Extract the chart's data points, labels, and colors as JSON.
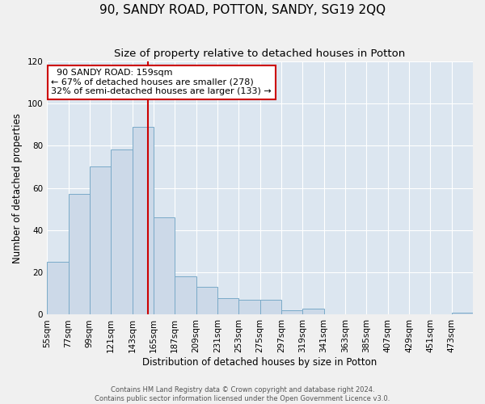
{
  "title": "90, SANDY ROAD, POTTON, SANDY, SG19 2QQ",
  "subtitle": "Size of property relative to detached houses in Potton",
  "xlabel": "Distribution of detached houses by size in Potton",
  "ylabel": "Number of detached properties",
  "property_label": "90 SANDY ROAD: 159sqm",
  "annotation_line1": "← 67% of detached houses are smaller (278)",
  "annotation_line2": "32% of semi-detached houses are larger (133) →",
  "footer_line1": "Contains HM Land Registry data © Crown copyright and database right 2024.",
  "footer_line2": "Contains public sector information licensed under the Open Government Licence v3.0.",
  "bar_edges": [
    55,
    77,
    99,
    121,
    143,
    165,
    187,
    209,
    231,
    253,
    275,
    297,
    319,
    341,
    363,
    385,
    407,
    429,
    451,
    473,
    495
  ],
  "bar_heights": [
    25,
    57,
    70,
    78,
    89,
    46,
    18,
    13,
    8,
    7,
    7,
    2,
    3,
    0,
    0,
    0,
    0,
    0,
    0,
    1
  ],
  "bar_color": "#ccd9e8",
  "bar_edge_color": "#7aaac8",
  "reference_line_x": 159,
  "reference_line_color": "#cc0000",
  "annotation_box_color": "#ffffff",
  "annotation_box_edge": "#cc0000",
  "plot_bg_color": "#dce6f0",
  "fig_bg_color": "#f0f0f0",
  "ylim_max": 120,
  "yticks": [
    0,
    20,
    40,
    60,
    80,
    100,
    120
  ],
  "grid_color": "#ffffff",
  "title_fontsize": 11,
  "subtitle_fontsize": 9.5,
  "axis_label_fontsize": 8.5,
  "tick_fontsize": 7.5,
  "annotation_fontsize": 8,
  "footer_fontsize": 6
}
